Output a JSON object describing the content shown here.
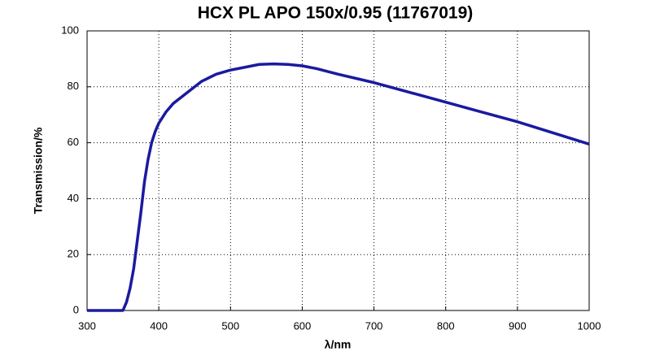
{
  "chart_data": {
    "type": "line",
    "title": "HCX PL APO 150x/0.95 (11767019)",
    "x_label": "λ/nm",
    "y_label": "Transmission/%",
    "x": [
      300,
      350,
      355,
      360,
      365,
      370,
      375,
      380,
      385,
      390,
      395,
      400,
      410,
      420,
      440,
      460,
      480,
      500,
      520,
      540,
      560,
      580,
      600,
      620,
      650,
      700,
      750,
      800,
      850,
      900,
      950,
      1000
    ],
    "series": [
      {
        "name": "Transmission",
        "color": "#1a1aa0",
        "values": [
          0,
          0,
          3,
          8,
          15,
          25,
          35,
          46,
          54,
          60,
          64,
          67,
          71,
          74,
          78,
          82,
          84.5,
          86,
          87,
          88,
          88.2,
          88,
          87.5,
          86.5,
          84.5,
          81.5,
          78,
          74.5,
          71,
          67.5,
          63.5,
          59.5
        ]
      }
    ],
    "xlim": [
      300,
      1000
    ],
    "ylim": [
      0,
      100
    ],
    "xticks": [
      300,
      400,
      500,
      600,
      700,
      800,
      900,
      1000
    ],
    "yticks": [
      0,
      20,
      40,
      60,
      80,
      100
    ],
    "grid": true
  }
}
